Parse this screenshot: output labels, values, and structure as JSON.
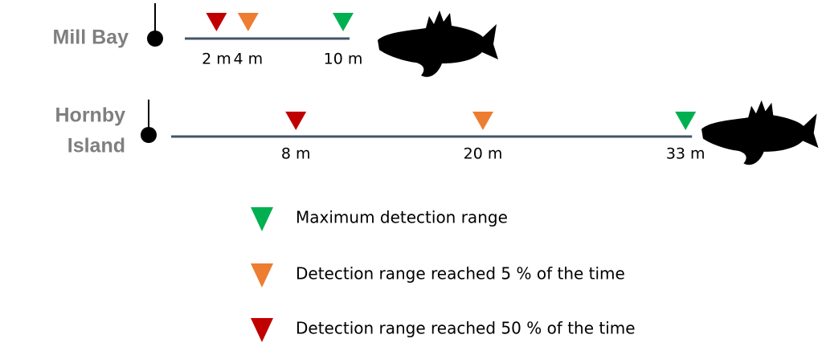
{
  "sites": [
    {
      "name_lines": [
        "Mill Bay"
      ],
      "markers": [
        {
          "value": 2,
          "label": "2 m",
          "color": "#c00000"
        },
        {
          "value": 4,
          "label": "4 m",
          "color": "#ed7d31"
        },
        {
          "value": 10,
          "label": "10 m",
          "color": "#00b050"
        }
      ]
    },
    {
      "name_lines": [
        "Hornby",
        "Island"
      ],
      "markers": [
        {
          "value": 8,
          "label": "8 m",
          "color": "#c00000"
        },
        {
          "value": 20,
          "label": "20 m",
          "color": "#ed7d31"
        },
        {
          "value": 33,
          "label": "33 m",
          "color": "#00b050"
        }
      ]
    }
  ],
  "legend": [
    {
      "label": "Maximum detection range",
      "color": "#00b050"
    },
    {
      "label": "Detection range reached 5 % of the time",
      "color": "#ed7d31"
    },
    {
      "label": "Detection range reached 50 % of the time",
      "color": "#c00000"
    }
  ]
}
